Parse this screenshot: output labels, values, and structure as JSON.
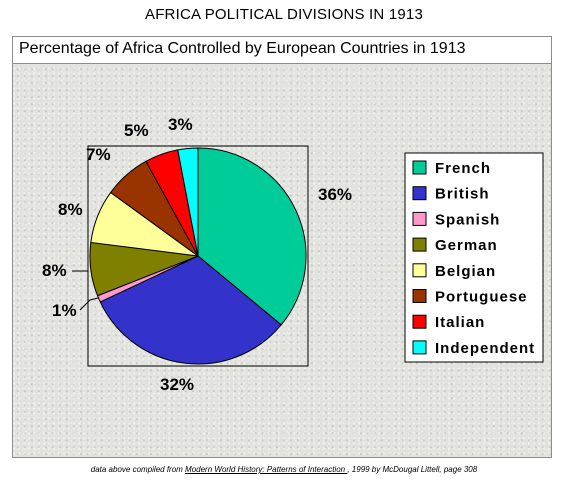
{
  "page": {
    "title": "AFRICA POLITICAL DIVISIONS IN 1913",
    "source_prefix": "data above compiled from ",
    "source_book": "Modern World History: Patterns of Interaction ",
    "source_suffix": ", 1999 by McDougal Littell, page 308"
  },
  "chart_data": {
    "type": "pie",
    "title": "Percentage of Africa Controlled by European Countries in 1913",
    "legend_position": "right",
    "slices": [
      {
        "label": "French",
        "value": 36,
        "display": "36%",
        "color": "#00cc99"
      },
      {
        "label": "British",
        "value": 32,
        "display": "32%",
        "color": "#3333cc"
      },
      {
        "label": "Spanish",
        "value": 1,
        "display": "1%",
        "color": "#ff99cc"
      },
      {
        "label": "German",
        "value": 8,
        "display": "8%",
        "color": "#808000"
      },
      {
        "label": "Belgian",
        "value": 8,
        "display": "8%",
        "color": "#ffff99"
      },
      {
        "label": "Portuguese",
        "value": 7,
        "display": "7%",
        "color": "#993300"
      },
      {
        "label": "Italian",
        "value": 5,
        "display": "5%",
        "color": "#ff0000"
      },
      {
        "label": "Independent",
        "value": 3,
        "display": "3%",
        "color": "#00ffff"
      }
    ]
  }
}
